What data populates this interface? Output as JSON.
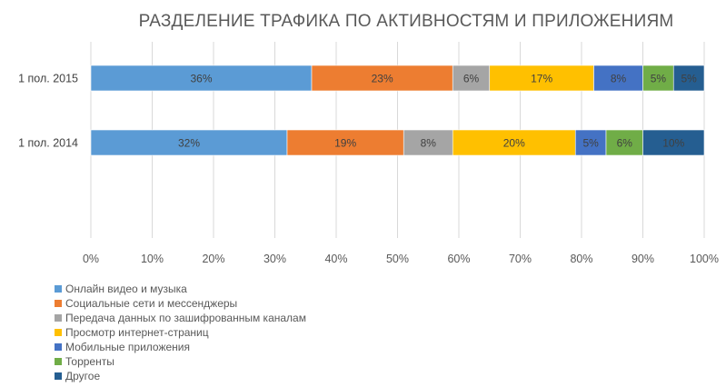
{
  "chart_data": {
    "type": "bar",
    "orientation": "horizontal",
    "stacked": "100%",
    "title": "РАЗДЕЛЕНИЕ ТРАФИКА ПО АКТИВНОСТЯМ И ПРИЛОЖЕНИЯМ",
    "xlabel": "",
    "ylabel": "",
    "xlim": [
      0,
      100
    ],
    "x_ticks": [
      "0%",
      "10%",
      "20%",
      "30%",
      "40%",
      "50%",
      "60%",
      "70%",
      "80%",
      "90%",
      "100%"
    ],
    "categories": [
      "1 пол. 2015",
      "1 пол. 2014"
    ],
    "grid": "vertical",
    "legend_position": "bottom-left",
    "series": [
      {
        "name": "Онлайн видео и музыка",
        "color": "#5B9BD5",
        "values": [
          36,
          32
        ],
        "labels": [
          "36%",
          "32%"
        ]
      },
      {
        "name": "Социальные сети и мессенджеры",
        "color": "#ED7D31",
        "values": [
          23,
          19
        ],
        "labels": [
          "23%",
          "19%"
        ]
      },
      {
        "name": "Передача данных по зашифрованным каналам",
        "color": "#A5A5A5",
        "values": [
          6,
          8
        ],
        "labels": [
          "6%",
          "8%"
        ]
      },
      {
        "name": "Просмотр интернет-страниц",
        "color": "#FFC000",
        "values": [
          17,
          20
        ],
        "labels": [
          "17%",
          "20%"
        ]
      },
      {
        "name": "Мобильные приложения",
        "color": "#4472C4",
        "values": [
          8,
          5
        ],
        "labels": [
          "8%",
          "5%"
        ]
      },
      {
        "name": "Торренты",
        "color": "#70AD47",
        "values": [
          5,
          6
        ],
        "labels": [
          "5%",
          "6%"
        ]
      },
      {
        "name": "Другое",
        "color": "#255E91",
        "values": [
          5,
          10
        ],
        "labels": [
          "5%",
          "10%"
        ]
      }
    ]
  }
}
